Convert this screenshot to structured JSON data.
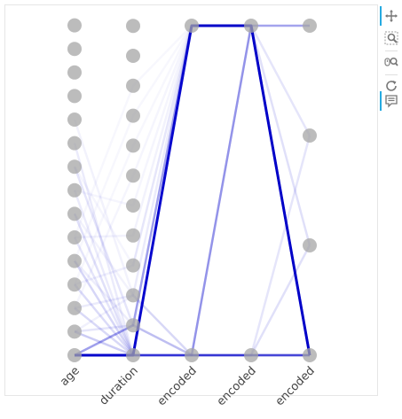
{
  "chart_data": {
    "type": "parallel-coordinates",
    "axes": [
      {
        "label": "age",
        "levels": 15
      },
      {
        "label": "duration",
        "levels": 12
      },
      {
        "label": "encoded",
        "levels": 2
      },
      {
        "label": "encoded",
        "levels": 2
      },
      {
        "label": "encoded",
        "levels": 4
      }
    ],
    "node_color": "#a6a6a6",
    "line_color": "#0000cc",
    "lines": [
      {
        "path": [
          0,
          0,
          1,
          1,
          0
        ],
        "weight": 0.95
      },
      {
        "path": [
          0,
          1,
          1,
          1,
          3
        ],
        "weight": 0.3
      },
      {
        "path": [
          0,
          0,
          0,
          1,
          0
        ],
        "weight": 0.2
      },
      {
        "path": [
          0,
          0,
          0,
          0,
          0
        ],
        "weight": 0.22
      },
      {
        "path": [
          0,
          0,
          0,
          0,
          1
        ],
        "weight": 0.12
      },
      {
        "path": [
          0,
          0,
          0,
          0,
          2
        ],
        "weight": 0.1
      },
      {
        "path": [
          0,
          0,
          0,
          1,
          3
        ],
        "weight": 0.08
      },
      {
        "path": [
          0,
          1,
          0,
          1,
          2
        ],
        "weight": 0.1
      },
      {
        "path": [
          0,
          0,
          0,
          1,
          1
        ],
        "weight": 0.12
      },
      {
        "path": [
          1,
          0,
          0,
          0,
          0
        ],
        "weight": 0.2
      },
      {
        "path": [
          2,
          0,
          1,
          1,
          0
        ],
        "weight": 0.15
      },
      {
        "path": [
          3,
          0,
          0,
          0,
          0
        ],
        "weight": 0.14
      },
      {
        "path": [
          4,
          0,
          1,
          1,
          0
        ],
        "weight": 0.16
      },
      {
        "path": [
          5,
          0,
          0,
          0,
          0
        ],
        "weight": 0.1
      },
      {
        "path": [
          6,
          0,
          1,
          1,
          0
        ],
        "weight": 0.12
      },
      {
        "path": [
          7,
          0,
          0,
          0,
          0
        ],
        "weight": 0.08
      },
      {
        "path": [
          8,
          1,
          1,
          1,
          0
        ],
        "weight": 0.1
      },
      {
        "path": [
          9,
          0,
          0,
          0,
          0
        ],
        "weight": 0.08
      },
      {
        "path": [
          10,
          2,
          0,
          0,
          0
        ],
        "weight": 0.05
      },
      {
        "path": [
          1,
          1,
          0,
          0,
          0
        ],
        "weight": 0.1
      },
      {
        "path": [
          2,
          2,
          1,
          1,
          0
        ],
        "weight": 0.08
      },
      {
        "path": [
          3,
          3,
          1,
          1,
          0
        ],
        "weight": 0.06
      },
      {
        "path": [
          4,
          1,
          0,
          0,
          0
        ],
        "weight": 0.07
      },
      {
        "path": [
          5,
          4,
          1,
          1,
          0
        ],
        "weight": 0.05
      },
      {
        "path": [
          6,
          2,
          0,
          0,
          0
        ],
        "weight": 0.05
      },
      {
        "path": [
          7,
          5,
          1,
          1,
          0
        ],
        "weight": 0.04
      },
      {
        "path": [
          8,
          3,
          1,
          1,
          0
        ],
        "weight": 0.04
      },
      {
        "path": [
          2,
          6,
          1,
          1,
          0
        ],
        "weight": 0.04
      },
      {
        "path": [
          3,
          7,
          1,
          1,
          0
        ],
        "weight": 0.03
      },
      {
        "path": [
          4,
          8,
          1,
          1,
          0
        ],
        "weight": 0.03
      },
      {
        "path": [
          5,
          9,
          1,
          1,
          0
        ],
        "weight": 0.03
      },
      {
        "path": [
          1,
          2,
          0,
          0,
          0
        ],
        "weight": 0.06
      }
    ]
  },
  "toolbar": {
    "tools": [
      {
        "name": "pan-tool",
        "icon": "pan-icon",
        "active": true
      },
      {
        "name": "box-zoom-tool",
        "icon": "box-zoom-icon",
        "active": false
      },
      {
        "name": "wheel-zoom-tool",
        "icon": "wheel-zoom-icon",
        "active": false
      },
      {
        "name": "reset-tool",
        "icon": "reset-icon",
        "active": false
      },
      {
        "name": "hover-tool",
        "icon": "hover-icon",
        "active": true
      }
    ],
    "accent_color": "#26aae1"
  }
}
